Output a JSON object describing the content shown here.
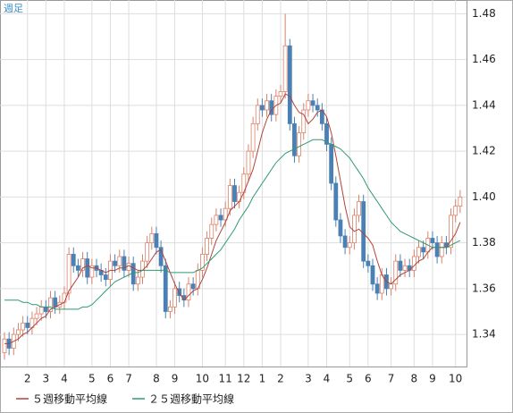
{
  "chart_data": {
    "type": "candlestick",
    "label": "週足",
    "categories": [
      null,
      null,
      null,
      null,
      null,
      "2",
      null,
      null,
      null,
      "3",
      null,
      null,
      null,
      "4",
      null,
      null,
      null,
      null,
      null,
      "5",
      null,
      null,
      null,
      "6",
      null,
      null,
      null,
      "7",
      null,
      null,
      null,
      null,
      null,
      "8",
      null,
      null,
      null,
      "9",
      null,
      null,
      null,
      null,
      null,
      "10",
      null,
      null,
      null,
      null,
      "11",
      null,
      null,
      null,
      "12",
      null,
      null,
      null,
      "1",
      null,
      null,
      null,
      "2",
      null,
      null,
      null,
      null,
      null,
      "3",
      null,
      null,
      null,
      "4",
      null,
      null,
      null,
      null,
      "5",
      null,
      null,
      null,
      "6",
      null,
      null,
      null,
      null,
      "7",
      null,
      null,
      null,
      null,
      "8",
      null,
      null,
      null,
      "9",
      null,
      null,
      null,
      null,
      "10",
      null
    ],
    "open": [
      1.332,
      1.338,
      1.334,
      1.34,
      1.342,
      1.345,
      1.343,
      1.347,
      1.349,
      1.352,
      1.35,
      1.356,
      1.352,
      1.354,
      1.358,
      1.375,
      1.37,
      1.368,
      1.373,
      1.365,
      1.37,
      1.368,
      1.366,
      1.364,
      1.372,
      1.37,
      1.374,
      1.368,
      1.371,
      1.362,
      1.365,
      1.372,
      1.38,
      1.384,
      1.378,
      1.37,
      1.35,
      1.352,
      1.36,
      1.357,
      1.355,
      1.362,
      1.36,
      1.368,
      1.375,
      1.382,
      1.388,
      1.392,
      1.39,
      1.395,
      1.405,
      1.398,
      1.402,
      1.41,
      1.42,
      1.432,
      1.44,
      1.438,
      1.442,
      1.436,
      1.444,
      1.446,
      1.466,
      1.432,
      1.418,
      1.428,
      1.438,
      1.442,
      1.44,
      1.438,
      1.432,
      1.423,
      1.406,
      1.39,
      1.383,
      1.378,
      1.38,
      1.392,
      1.398,
      1.372,
      1.37,
      1.362,
      1.358,
      1.366,
      1.36,
      1.362,
      1.372,
      1.368,
      1.37,
      1.368,
      1.374,
      1.378,
      1.376,
      1.382,
      1.38,
      1.374,
      1.38,
      1.378,
      1.392,
      1.396
    ],
    "high": [
      1.341,
      1.341,
      1.343,
      1.345,
      1.348,
      1.348,
      1.35,
      1.352,
      1.355,
      1.355,
      1.359,
      1.359,
      1.357,
      1.361,
      1.378,
      1.378,
      1.373,
      1.376,
      1.376,
      1.373,
      1.373,
      1.371,
      1.369,
      1.375,
      1.375,
      1.377,
      1.377,
      1.374,
      1.374,
      1.368,
      1.375,
      1.383,
      1.387,
      1.387,
      1.381,
      1.373,
      1.355,
      1.363,
      1.363,
      1.36,
      1.365,
      1.365,
      1.371,
      1.378,
      1.385,
      1.391,
      1.395,
      1.395,
      1.398,
      1.408,
      1.408,
      1.405,
      1.413,
      1.423,
      1.435,
      1.443,
      1.443,
      1.445,
      1.445,
      1.447,
      1.449,
      1.48,
      1.469,
      1.435,
      1.431,
      1.441,
      1.445,
      1.445,
      1.443,
      1.441,
      1.435,
      1.426,
      1.409,
      1.393,
      1.386,
      1.383,
      1.395,
      1.401,
      1.401,
      1.375,
      1.373,
      1.365,
      1.369,
      1.369,
      1.365,
      1.375,
      1.375,
      1.373,
      1.373,
      1.377,
      1.381,
      1.381,
      1.385,
      1.385,
      1.383,
      1.383,
      1.383,
      1.395,
      1.399,
      1.403
    ],
    "low": [
      1.329,
      1.331,
      1.331,
      1.337,
      1.339,
      1.34,
      1.34,
      1.344,
      1.346,
      1.347,
      1.347,
      1.349,
      1.349,
      1.351,
      1.355,
      1.367,
      1.365,
      1.365,
      1.362,
      1.362,
      1.365,
      1.363,
      1.361,
      1.361,
      1.367,
      1.367,
      1.365,
      1.365,
      1.359,
      1.359,
      1.362,
      1.369,
      1.377,
      1.375,
      1.367,
      1.347,
      1.347,
      1.349,
      1.354,
      1.352,
      1.352,
      1.357,
      1.357,
      1.365,
      1.372,
      1.379,
      1.385,
      1.387,
      1.387,
      1.392,
      1.395,
      1.395,
      1.399,
      1.407,
      1.417,
      1.429,
      1.435,
      1.435,
      1.433,
      1.433,
      1.441,
      1.443,
      1.429,
      1.415,
      1.415,
      1.425,
      1.435,
      1.437,
      1.435,
      1.429,
      1.42,
      1.403,
      1.387,
      1.38,
      1.375,
      1.375,
      1.377,
      1.389,
      1.369,
      1.367,
      1.359,
      1.355,
      1.355,
      1.357,
      1.357,
      1.359,
      1.365,
      1.365,
      1.365,
      1.365,
      1.371,
      1.373,
      1.373,
      1.377,
      1.371,
      1.371,
      1.375,
      1.375,
      1.389,
      1.393
    ],
    "close": [
      1.338,
      1.334,
      1.34,
      1.342,
      1.345,
      1.343,
      1.347,
      1.349,
      1.352,
      1.35,
      1.356,
      1.352,
      1.354,
      1.358,
      1.375,
      1.37,
      1.368,
      1.373,
      1.365,
      1.37,
      1.368,
      1.366,
      1.364,
      1.372,
      1.37,
      1.374,
      1.368,
      1.371,
      1.362,
      1.365,
      1.372,
      1.38,
      1.384,
      1.378,
      1.37,
      1.35,
      1.352,
      1.36,
      1.357,
      1.355,
      1.362,
      1.36,
      1.368,
      1.375,
      1.382,
      1.388,
      1.392,
      1.39,
      1.395,
      1.405,
      1.398,
      1.402,
      1.41,
      1.42,
      1.432,
      1.44,
      1.438,
      1.442,
      1.436,
      1.444,
      1.446,
      1.466,
      1.432,
      1.418,
      1.428,
      1.438,
      1.442,
      1.44,
      1.438,
      1.432,
      1.423,
      1.406,
      1.39,
      1.383,
      1.378,
      1.38,
      1.392,
      1.398,
      1.372,
      1.37,
      1.362,
      1.358,
      1.366,
      1.36,
      1.362,
      1.372,
      1.368,
      1.37,
      1.368,
      1.374,
      1.378,
      1.376,
      1.382,
      1.38,
      1.374,
      1.38,
      1.378,
      1.392,
      1.396,
      1.4
    ],
    "up_color": "#d9826a",
    "down_color": "#4a80b4",
    "series": [
      {
        "name": "５週移動平均線",
        "color": "#b0443a",
        "values": [
          1.336,
          1.336,
          1.337,
          1.338,
          1.34,
          1.341,
          1.343,
          1.345,
          1.347,
          1.348,
          1.351,
          1.352,
          1.353,
          1.354,
          1.359,
          1.362,
          1.365,
          1.369,
          1.37,
          1.369,
          1.369,
          1.368,
          1.367,
          1.368,
          1.368,
          1.369,
          1.369,
          1.37,
          1.369,
          1.368,
          1.368,
          1.37,
          1.373,
          1.376,
          1.377,
          1.372,
          1.367,
          1.362,
          1.358,
          1.355,
          1.357,
          1.359,
          1.36,
          1.364,
          1.369,
          1.375,
          1.381,
          1.385,
          1.389,
          1.394,
          1.396,
          1.398,
          1.402,
          1.407,
          1.412,
          1.42,
          1.428,
          1.434,
          1.438,
          1.44,
          1.441,
          1.445,
          1.444,
          1.44,
          1.437,
          1.436,
          1.432,
          1.434,
          1.437,
          1.438,
          1.435,
          1.428,
          1.418,
          1.407,
          1.396,
          1.387,
          1.385,
          1.386,
          1.384,
          1.382,
          1.379,
          1.372,
          1.366,
          1.363,
          1.362,
          1.364,
          1.366,
          1.367,
          1.368,
          1.37,
          1.372,
          1.373,
          1.376,
          1.378,
          1.378,
          1.378,
          1.378,
          1.381,
          1.384,
          1.389
        ]
      },
      {
        "name": "２５週移動平均線",
        "color": "#2e9a72",
        "values": [
          1.355,
          1.355,
          1.355,
          1.355,
          1.354,
          1.354,
          1.353,
          1.353,
          1.352,
          1.352,
          1.352,
          1.351,
          1.351,
          1.351,
          1.351,
          1.351,
          1.351,
          1.352,
          1.352,
          1.353,
          1.355,
          1.357,
          1.359,
          1.361,
          1.363,
          1.364,
          1.365,
          1.366,
          1.367,
          1.367,
          1.368,
          1.368,
          1.368,
          1.368,
          1.368,
          1.368,
          1.367,
          1.367,
          1.367,
          1.367,
          1.367,
          1.367,
          1.368,
          1.369,
          1.371,
          1.373,
          1.375,
          1.377,
          1.38,
          1.383,
          1.386,
          1.39,
          1.393,
          1.396,
          1.4,
          1.403,
          1.406,
          1.409,
          1.412,
          1.415,
          1.417,
          1.419,
          1.42,
          1.421,
          1.422,
          1.423,
          1.424,
          1.425,
          1.425,
          1.425,
          1.424,
          1.423,
          1.422,
          1.421,
          1.419,
          1.417,
          1.414,
          1.411,
          1.408,
          1.404,
          1.401,
          1.398,
          1.395,
          1.392,
          1.389,
          1.387,
          1.385,
          1.384,
          1.383,
          1.382,
          1.381,
          1.38,
          1.379,
          1.378,
          1.378,
          1.378,
          1.378,
          1.379,
          1.38,
          1.381
        ]
      }
    ],
    "ylim": [
      1.326,
      1.486
    ],
    "yticks": [
      1.34,
      {
        "value": 1.36,
        "label": "1.36"
      },
      1.38,
      {
        "value": 1.4,
        "label": "1.40"
      },
      1.42,
      1.44,
      1.46,
      1.48
    ],
    "grid": true
  }
}
